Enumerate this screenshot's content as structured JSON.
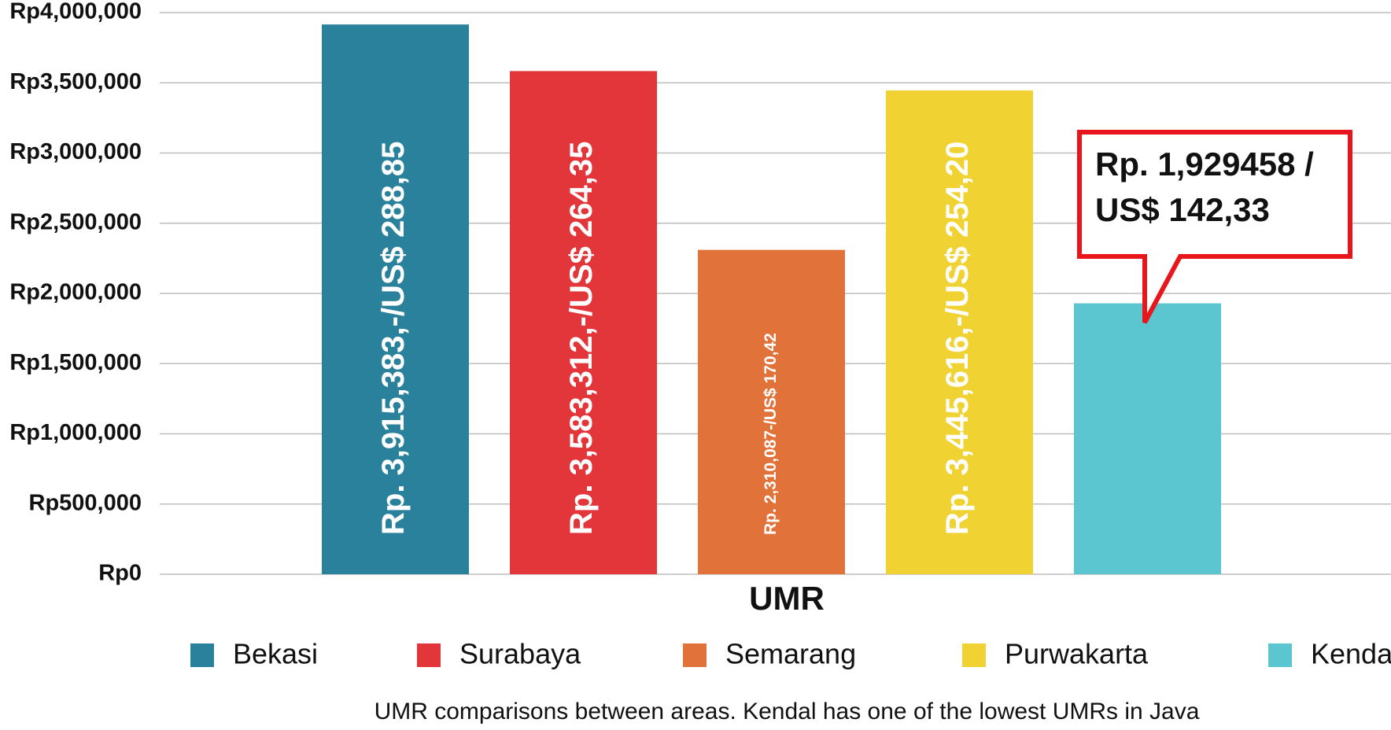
{
  "chart_data": {
    "type": "bar",
    "categories": [
      "UMR"
    ],
    "series": [
      {
        "name": "Bekasi",
        "color": "#29819b",
        "values": [
          3915383
        ],
        "value_labels": [
          "Rp. 3,915,383,-/US$ 288,85"
        ]
      },
      {
        "name": "Surabaya",
        "color": "#e2363b",
        "values": [
          3583312
        ],
        "value_labels": [
          "Rp. 3,583,312,-/US$ 264,35"
        ]
      },
      {
        "name": "Semarang",
        "color": "#e0723a",
        "values": [
          2310087
        ],
        "value_labels": [
          "Rp. 2,310,087-/US$ 170,42"
        ]
      },
      {
        "name": "Purwakarta",
        "color": "#f0d232",
        "values": [
          3445616
        ],
        "value_labels": [
          "Rp. 3,445,616,-/US$ 254,20"
        ]
      },
      {
        "name": "Kendal",
        "color": "#5cc6d0",
        "values": [
          1929458
        ],
        "value_labels": [
          "Rp. 1,929458 / US$ 142,33"
        ]
      }
    ],
    "ylim": [
      0,
      4000000
    ],
    "yticks": [
      {
        "value": 0,
        "label": "Rp0"
      },
      {
        "value": 500000,
        "label": "Rp500,000"
      },
      {
        "value": 1000000,
        "label": "Rp1,000,000"
      },
      {
        "value": 1500000,
        "label": "Rp1,500,000"
      },
      {
        "value": 2000000,
        "label": "Rp2,000,000"
      },
      {
        "value": 2500000,
        "label": "Rp2,500,000"
      },
      {
        "value": 3000000,
        "label": "Rp3,000,000"
      },
      {
        "value": 3500000,
        "label": "Rp3,500,000"
      },
      {
        "value": 4000000,
        "label": "Rp4,000,000"
      }
    ],
    "grid": true,
    "caption": "UMR comparisons between areas. Kendal has one of the lowest UMRs in Java"
  }
}
